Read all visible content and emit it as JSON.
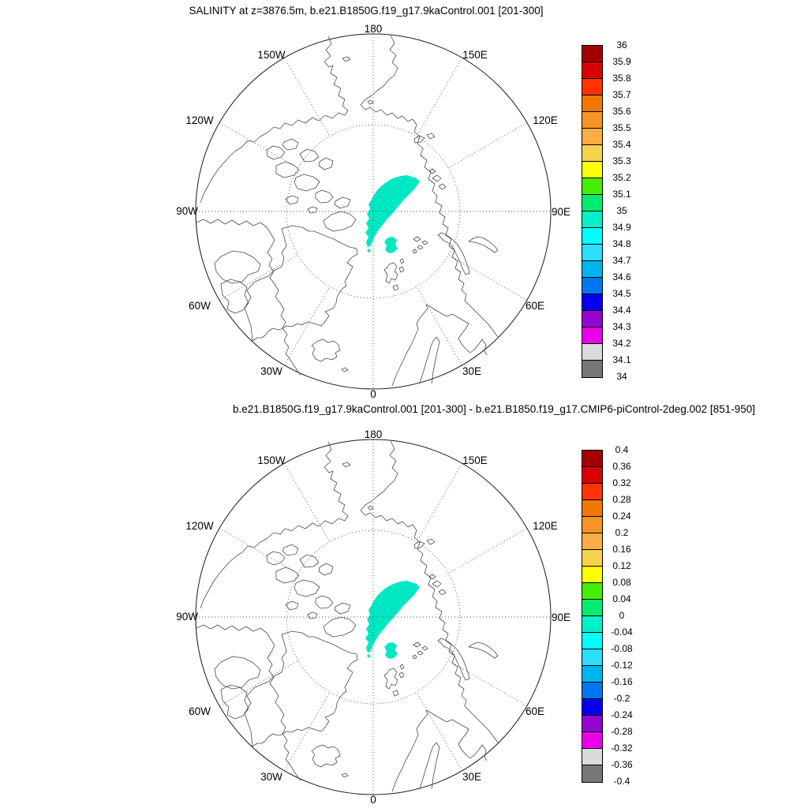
{
  "panels": [
    {
      "title": "SALINITY at z=3876.5m, b.e21.B1850G.f19_g17.9kaControl.001 [201-300]",
      "colorbar": {
        "labels": [
          "36",
          "35.9",
          "35.8",
          "35.7",
          "35.6",
          "35.5",
          "35.4",
          "35.3",
          "35.2",
          "35.1",
          "35",
          "34.9",
          "34.8",
          "34.7",
          "34.6",
          "34.5",
          "34.4",
          "34.3",
          "34.2",
          "34.1",
          "34"
        ],
        "colors": [
          "#a50000",
          "#db0000",
          "#ff3300",
          "#f07800",
          "#f79425",
          "#faad42",
          "#f7d24e",
          "#ffff00",
          "#46ee00",
          "#00ee6e",
          "#00f2c8",
          "#00ffff",
          "#2bdfff",
          "#00b4f0",
          "#0077f0",
          "#0500f0",
          "#9405d2",
          "#eb00eb",
          "#dbdbdb",
          "#777777"
        ]
      }
    },
    {
      "title": "b.e21.B1850G.f19_g17.9kaControl.001 [201-300] - b.e21.B1850.f19_g17.CMIP6-piControl-2deg.002 [851-950]",
      "colorbar": {
        "labels": [
          "0.4",
          "0.36",
          "0.32",
          "0.28",
          "0.24",
          "0.2",
          "0.16",
          "0.12",
          "0.08",
          "0.04",
          "0",
          "-0.04",
          "-0.08",
          "-0.12",
          "-0.16",
          "-0.2",
          "-0.24",
          "-0.28",
          "-0.32",
          "-0.36",
          "-0.4"
        ],
        "colors": [
          "#a50000",
          "#db0000",
          "#ff3300",
          "#f07800",
          "#f79425",
          "#faad42",
          "#f7d24e",
          "#ffff00",
          "#46ee00",
          "#00ee6e",
          "#00f2c8",
          "#00ffff",
          "#2bdfff",
          "#00b4f0",
          "#0077f0",
          "#0500f0",
          "#9405d2",
          "#eb00eb",
          "#dbdbdb",
          "#777777"
        ]
      }
    }
  ],
  "map": {
    "lon_labels": [
      "180",
      "150W",
      "150E",
      "120W",
      "120E",
      "90W",
      "90E",
      "60W",
      "60E",
      "30W",
      "30E",
      "0"
    ],
    "patch_color": "#00e8c3"
  },
  "chart_data": [
    {
      "type": "heatmap",
      "subtype": "filled-contour polar map",
      "projection": "north polar stereographic, North Pole centered, 0 longitude at bottom, 180 at top",
      "title": "SALINITY at z=3876.5m, b.e21.B1850G.f19_g17.9kaControl.001 [201-300]",
      "variable": "SALINITY",
      "depth_label": "z=3876.5m",
      "case": "b.e21.B1850G.f19_g17.9kaControl.001",
      "averaging_years": "[201-300]",
      "lon_tick_labels": [
        "180",
        "150W",
        "150E",
        "120W",
        "120E",
        "90W",
        "90E",
        "60W",
        "60E",
        "30W",
        "30E",
        "0"
      ],
      "colorbar_levels_high_to_low": [
        36,
        35.9,
        35.8,
        35.7,
        35.6,
        35.5,
        35.4,
        35.3,
        35.2,
        35.1,
        35,
        34.9,
        34.8,
        34.7,
        34.6,
        34.5,
        34.4,
        34.3,
        34.2,
        34.1,
        34
      ],
      "colorbar_colors_high_to_low": [
        "#a50000",
        "#db0000",
        "#ff3300",
        "#f07800",
        "#f79425",
        "#faad42",
        "#f7d24e",
        "#ffff00",
        "#46ee00",
        "#00ee6e",
        "#00f2c8",
        "#00ffff",
        "#2bdfff",
        "#00b4f0",
        "#0077f0",
        "#0500f0",
        "#9405d2",
        "#eb00eb",
        "#dbdbdb",
        "#777777"
      ],
      "legend_position": "right vertical labelbar",
      "grid": "dotted meridians every 30 deg and one dotted latitude circle",
      "visible_data": "single elongated teal patch (value approx. 34.9-35.0) crossing the North Pole toward the 120E-150E sector, with one small detached teal blob just south of it; rest of ocean blank (masked at this depth)"
    },
    {
      "type": "heatmap",
      "subtype": "filled-contour polar map (difference)",
      "projection": "north polar stereographic, North Pole centered, 0 longitude at bottom, 180 at top",
      "title": "b.e21.B1850G.f19_g17.9kaControl.001 [201-300] - b.e21.B1850.f19_g17.CMIP6-piControl-2deg.002 [851-950]",
      "case_minuend": "b.e21.B1850G.f19_g17.9kaControl.001 [201-300]",
      "case_subtrahend": "b.e21.B1850.f19_g17.CMIP6-piControl-2deg.002 [851-950]",
      "lon_tick_labels": [
        "180",
        "150W",
        "150E",
        "120W",
        "120E",
        "90W",
        "90E",
        "60W",
        "60E",
        "30W",
        "30E",
        "0"
      ],
      "colorbar_levels_high_to_low": [
        0.4,
        0.36,
        0.32,
        0.28,
        0.24,
        0.2,
        0.16,
        0.12,
        0.08,
        0.04,
        0,
        -0.04,
        -0.08,
        -0.12,
        -0.16,
        -0.2,
        -0.24,
        -0.28,
        -0.32,
        -0.36,
        -0.4
      ],
      "colorbar_colors_high_to_low": [
        "#a50000",
        "#db0000",
        "#ff3300",
        "#f07800",
        "#f79425",
        "#faad42",
        "#f7d24e",
        "#ffff00",
        "#46ee00",
        "#00ee6e",
        "#00f2c8",
        "#00ffff",
        "#2bdfff",
        "#00b4f0",
        "#0077f0",
        "#0500f0",
        "#9405d2",
        "#eb00eb",
        "#dbdbdb",
        "#777777"
      ],
      "legend_position": "right vertical labelbar",
      "grid": "dotted meridians every 30 deg and one dotted latitude circle",
      "visible_data": "same teal patch near the North Pole (difference approx. -0.04 to -0.08); everywhere else blank"
    }
  ]
}
